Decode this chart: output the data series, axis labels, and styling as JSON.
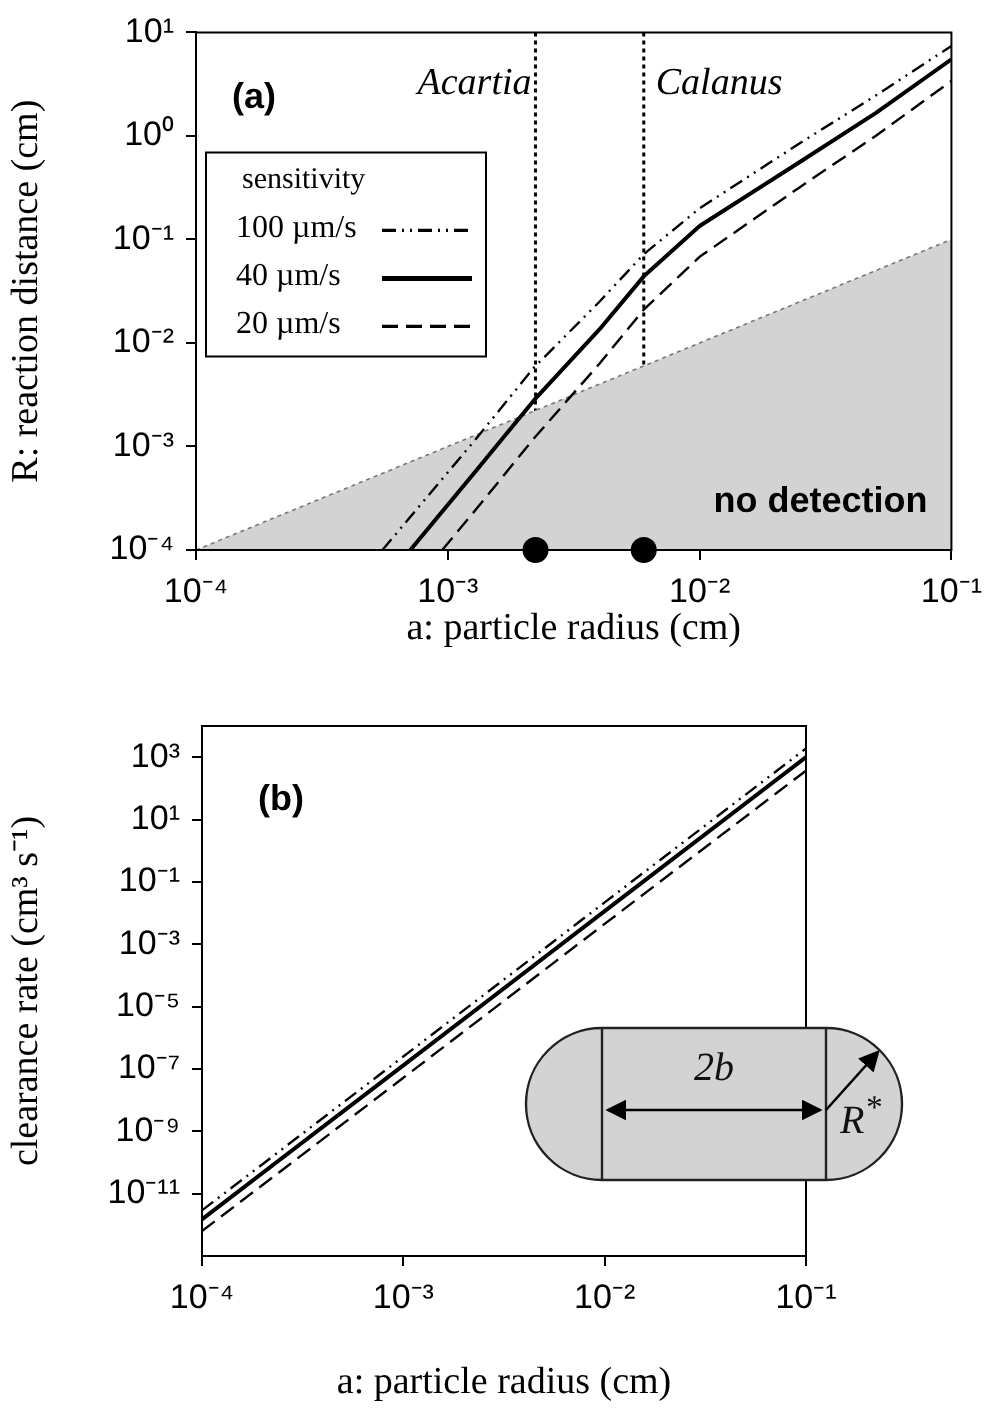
{
  "chart_data": [
    {
      "type": "line",
      "xlabel": "a: particle radius (cm)",
      "ylabel": "R: reaction distance (cm)",
      "legend_title": "sensitivity",
      "legend": "top left",
      "grid": false,
      "log": "xy",
      "xlim": [
        0.0001,
        0.1
      ],
      "ylim": [
        0.0001,
        10
      ],
      "xticks": [
        {
          "value": 0.0001,
          "label": "10⁻⁴"
        },
        {
          "value": 0.001,
          "label": "10⁻³"
        },
        {
          "value": 0.01,
          "label": "10⁻²"
        },
        {
          "value": 0.1,
          "label": "10⁻¹"
        }
      ],
      "yticks": [
        {
          "value": 0.0001,
          "label": "10⁻⁴"
        },
        {
          "value": 0.001,
          "label": "10⁻³"
        },
        {
          "value": 0.01,
          "label": "10⁻²"
        },
        {
          "value": 0.1,
          "label": "10⁻¹"
        },
        {
          "value": 1,
          "label": "10⁰"
        },
        {
          "value": 10,
          "label": "10¹"
        }
      ],
      "series": [
        {
          "type": "area",
          "color": "#d3d3d3",
          "x": [
            0.0001,
            0.1
          ],
          "values": [
            0.0001,
            0.1
          ]
        },
        {
          "name": "100 µm/s",
          "color": "#000000",
          "line_style": "dashdot",
          "x": [
            0.00055,
            0.0013,
            0.0022,
            0.004,
            0.006,
            0.01,
            0.025,
            0.05,
            0.1
          ],
          "values": [
            0.0001,
            0.0012,
            0.0058,
            0.025,
            0.072,
            0.2,
            0.85,
            2.45,
            7.4
          ]
        },
        {
          "name": "40 µm/s",
          "color": "#000000",
          "line_style": "solid",
          "x": [
            0.00071,
            0.0013,
            0.0022,
            0.004,
            0.006,
            0.01,
            0.025,
            0.05,
            0.1
          ],
          "values": [
            0.0001,
            0.00059,
            0.0028,
            0.0135,
            0.044,
            0.135,
            0.56,
            1.66,
            5.5
          ]
        },
        {
          "name": "20 µm/s",
          "color": "#000000",
          "line_style": "dashed",
          "x": [
            0.00095,
            0.0013,
            0.0022,
            0.004,
            0.006,
            0.01,
            0.025,
            0.05,
            0.1
          ],
          "values": [
            0.0001,
            0.00025,
            0.0012,
            0.0063,
            0.021,
            0.068,
            0.32,
            1.0,
            3.4
          ]
        },
        {
          "type": "scatter",
          "color": "#000000",
          "marker": "circle",
          "x": [
            0.00223,
            0.006
          ],
          "values": [
            0.0001,
            0.0001
          ]
        }
      ],
      "ref_lines": [
        {
          "axis": "x",
          "value": 0.00223,
          "label": "Acartia",
          "line_style": "dotted",
          "color": "#000000"
        },
        {
          "axis": "x",
          "value": 0.006,
          "label": "Calanus",
          "line_style": "dotted",
          "color": "#000000"
        }
      ],
      "annotations": [
        "(a)",
        "no detection"
      ]
    },
    {
      "type": "line",
      "xlabel": "a: particle radius (cm)",
      "ylabel": "clearance rate (cm³ s⁻¹)",
      "legend": false,
      "grid": false,
      "log": "xy",
      "xlim": [
        0.0001,
        0.1
      ],
      "ylim": [
        1e-13,
        10000
      ],
      "xticks": [
        {
          "value": 0.0001,
          "label": "10⁻⁴"
        },
        {
          "value": 0.001,
          "label": "10⁻³"
        },
        {
          "value": 0.01,
          "label": "10⁻²"
        },
        {
          "value": 0.1,
          "label": "10⁻¹"
        }
      ],
      "yticks": [
        {
          "value": 1e-11,
          "label": "10⁻¹¹"
        },
        {
          "value": 1e-09,
          "label": "10⁻⁹"
        },
        {
          "value": 1e-07,
          "label": "10⁻⁷"
        },
        {
          "value": 1e-05,
          "label": "10⁻⁵"
        },
        {
          "value": 0.001,
          "label": "10⁻³"
        },
        {
          "value": 0.1,
          "label": "10⁻¹"
        },
        {
          "value": 10,
          "label": "10¹"
        },
        {
          "value": 1000,
          "label": "10³"
        }
      ],
      "series": [
        {
          "color": "#000000",
          "line_style": "dashdot",
          "x": [
            0.0001,
            0.001,
            0.01,
            0.1
          ],
          "values": [
            2.9e-12,
            2.5e-07,
            0.022,
            1900
          ]
        },
        {
          "color": "#000000",
          "line_style": "solid",
          "x": [
            0.0001,
            0.001,
            0.01,
            0.1
          ],
          "values": [
            1.5e-12,
            1.3e-07,
            0.0115,
            1000
          ]
        },
        {
          "color": "#000000",
          "line_style": "dashed",
          "x": [
            0.0001,
            0.001,
            0.01,
            0.1
          ],
          "values": [
            6.3e-13,
            5.2e-08,
            0.0045,
            370
          ]
        }
      ],
      "annotations": [
        "(b)",
        "2b",
        "R$^{*}$"
      ]
    }
  ]
}
